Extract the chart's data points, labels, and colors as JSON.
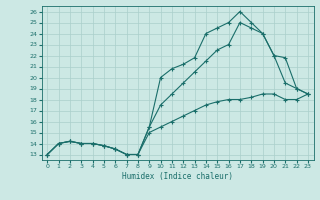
{
  "xlabel": "Humidex (Indice chaleur)",
  "bg_color": "#cce8e4",
  "grid_color": "#aacfcb",
  "line_color": "#1a6e6a",
  "xlim": [
    -0.5,
    23.5
  ],
  "ylim": [
    12.5,
    26.5
  ],
  "xticks": [
    0,
    1,
    2,
    3,
    4,
    5,
    6,
    7,
    8,
    9,
    10,
    11,
    12,
    13,
    14,
    15,
    16,
    17,
    18,
    19,
    20,
    21,
    22,
    23
  ],
  "yticks": [
    13,
    14,
    15,
    16,
    17,
    18,
    19,
    20,
    21,
    22,
    23,
    24,
    25,
    26
  ],
  "line1_x": [
    0,
    1,
    2,
    3,
    4,
    5,
    6,
    7,
    8,
    9,
    10,
    11,
    12,
    13,
    14,
    15,
    16,
    17,
    18,
    19,
    20,
    21,
    22,
    23
  ],
  "line1_y": [
    13,
    14,
    14.2,
    14,
    14,
    13.8,
    13.5,
    13,
    13,
    15.5,
    20,
    20.8,
    21.2,
    21.8,
    24,
    24.5,
    25,
    26,
    25,
    24,
    22,
    21.8,
    19,
    18.5
  ],
  "line2_x": [
    0,
    1,
    2,
    3,
    4,
    5,
    6,
    7,
    8,
    9,
    10,
    11,
    12,
    13,
    14,
    15,
    16,
    17,
    18,
    19,
    20,
    21,
    22,
    23
  ],
  "line2_y": [
    13,
    14,
    14.2,
    14,
    14,
    13.8,
    13.5,
    13,
    13,
    15.5,
    17.5,
    18.5,
    19.5,
    20.5,
    21.5,
    22.5,
    23,
    25,
    24.5,
    24,
    22,
    19.5,
    19,
    18.5
  ],
  "line3_x": [
    0,
    1,
    2,
    3,
    4,
    5,
    6,
    7,
    8,
    9,
    10,
    11,
    12,
    13,
    14,
    15,
    16,
    17,
    18,
    19,
    20,
    21,
    22,
    23
  ],
  "line3_y": [
    13,
    14,
    14.2,
    14,
    14,
    13.8,
    13.5,
    13,
    13,
    15,
    15.5,
    16,
    16.5,
    17,
    17.5,
    17.8,
    18,
    18,
    18.2,
    18.5,
    18.5,
    18,
    18,
    18.5
  ]
}
